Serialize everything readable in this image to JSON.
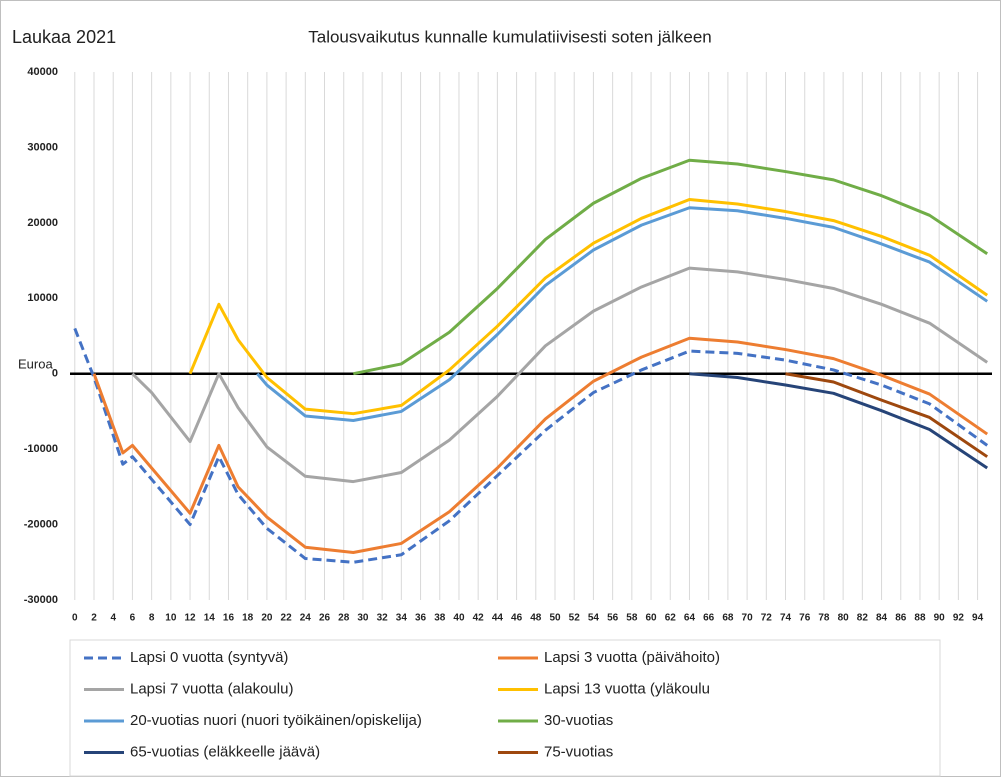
{
  "chart_data": {
    "type": "line",
    "label": "Laukaa 2021",
    "title": "Talousvaikutus kunnalle kumulatiivisesti soten jälkeen",
    "y_label": "Euroa",
    "xlim": [
      -0.5,
      95.5
    ],
    "xticks": [
      0,
      2,
      4,
      6,
      8,
      10,
      12,
      14,
      16,
      18,
      20,
      22,
      24,
      26,
      28,
      30,
      32,
      34,
      36,
      38,
      40,
      42,
      44,
      46,
      48,
      50,
      52,
      54,
      56,
      58,
      60,
      62,
      64,
      66,
      68,
      70,
      72,
      74,
      76,
      78,
      80,
      82,
      84,
      86,
      88,
      90,
      92,
      94
    ],
    "ylim": [
      -30000,
      40000
    ],
    "yticks": [
      -30000,
      -20000,
      -10000,
      0,
      10000,
      20000,
      30000,
      40000
    ],
    "grid": true,
    "legend": "bottom",
    "series": [
      {
        "name": "Lapsi 0 vuotta (syntyvä)",
        "color": "#4472c4",
        "dashed": true,
        "x": [
          0,
          2,
          5,
          6,
          8,
          12,
          15,
          17,
          20,
          24,
          29,
          34,
          39,
          44,
          49,
          54,
          59,
          64,
          69,
          74,
          79,
          84,
          89,
          95
        ],
        "values": [
          6000,
          -500,
          -12000,
          -11000,
          -14000,
          -20000,
          -11000,
          -16000,
          -20500,
          -24500,
          -25000,
          -24000,
          -19500,
          -13500,
          -7500,
          -2500,
          500,
          3000,
          2700,
          1800,
          500,
          -1500,
          -4000,
          -9500
        ]
      },
      {
        "name": "Lapsi 3 vuotta (päivähoito)",
        "color": "#ed7d31",
        "x": [
          2,
          5,
          6,
          8,
          12,
          15,
          17,
          20,
          24,
          29,
          34,
          39,
          44,
          49,
          54,
          59,
          64,
          69,
          74,
          79,
          84,
          89,
          95
        ],
        "values": [
          0,
          -10500,
          -9500,
          -12500,
          -18500,
          -9500,
          -15000,
          -19000,
          -23000,
          -23700,
          -22500,
          -18300,
          -12500,
          -6000,
          -1000,
          2200,
          4700,
          4200,
          3200,
          2000,
          -200,
          -2700,
          -8000
        ]
      },
      {
        "name": "Lapsi 7 vuotta (alakoulu)",
        "color": "#a5a5a5",
        "x": [
          6,
          8,
          12,
          15,
          17,
          20,
          24,
          29,
          34,
          39,
          44,
          49,
          54,
          59,
          64,
          69,
          74,
          79,
          84,
          89,
          95
        ],
        "values": [
          0,
          -2500,
          -9000,
          0,
          -4500,
          -9700,
          -13600,
          -14300,
          -13100,
          -8800,
          -3000,
          3700,
          8300,
          11500,
          14000,
          13500,
          12500,
          11300,
          9200,
          6700,
          1500
        ]
      },
      {
        "name": "Lapsi 13 vuotta (yläkoulu",
        "color": "#ffc000",
        "x": [
          12,
          15,
          17,
          20,
          24,
          29,
          34,
          39,
          44,
          49,
          54,
          59,
          64,
          69,
          74,
          79,
          84,
          89,
          95
        ],
        "values": [
          0,
          9200,
          4500,
          -500,
          -4700,
          -5300,
          -4200,
          500,
          6300,
          12700,
          17300,
          20600,
          23100,
          22500,
          21500,
          20300,
          18200,
          15700,
          10400
        ]
      },
      {
        "name": "20-vuotias nuori (nuori työikäinen/opiskelija)",
        "color": "#5b9bd5",
        "x": [
          19,
          20,
          24,
          29,
          34,
          39,
          44,
          49,
          54,
          59,
          64,
          69,
          74,
          79,
          84,
          89,
          95
        ],
        "values": [
          0,
          -1500,
          -5600,
          -6200,
          -5000,
          -800,
          5200,
          11700,
          16400,
          19700,
          22000,
          21600,
          20600,
          19400,
          17200,
          14800,
          9600
        ]
      },
      {
        "name": "30-vuotias",
        "color": "#70ad47",
        "x": [
          29,
          34,
          39,
          44,
          49,
          54,
          59,
          64,
          69,
          74,
          79,
          84,
          89,
          95
        ],
        "values": [
          0,
          1300,
          5500,
          11300,
          17800,
          22600,
          25900,
          28300,
          27800,
          26800,
          25700,
          23600,
          21000,
          15900
        ]
      },
      {
        "name": "65-vuotias (eläkkeelle jäävä)",
        "color": "#264478",
        "x": [
          64,
          69,
          74,
          79,
          84,
          89,
          95
        ],
        "values": [
          0,
          -500,
          -1500,
          -2600,
          -4900,
          -7400,
          -12500
        ]
      },
      {
        "name": "75-vuotias",
        "color": "#9e480e",
        "x": [
          74,
          79,
          84,
          89,
          95
        ],
        "values": [
          0,
          -1100,
          -3500,
          -5800,
          -11000
        ]
      }
    ]
  }
}
